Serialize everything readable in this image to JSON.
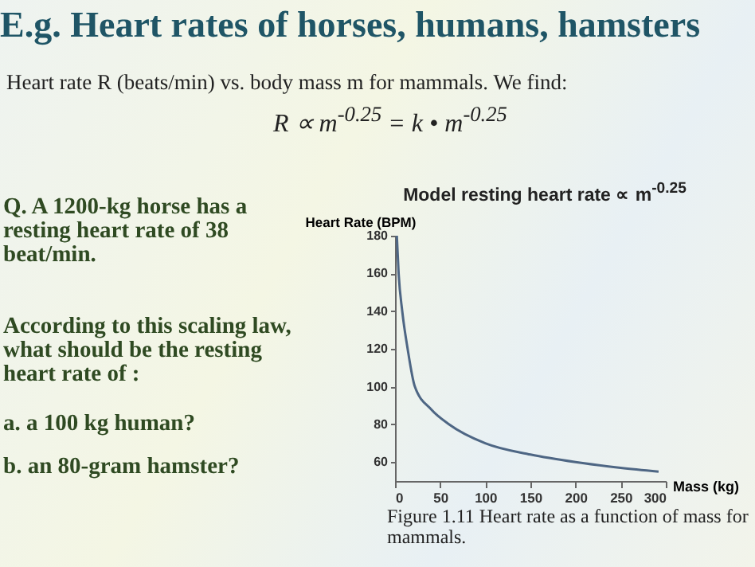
{
  "chart_data": {
    "type": "line",
    "title": "Model resting heart rate ∝ m$^{-0.25}$",
    "xlabel": "Mass (kg)",
    "ylabel": "Heart Rate (BPM)",
    "x": [
      2,
      4,
      8,
      14,
      22,
      40,
      60,
      100,
      150,
      200,
      250,
      292
    ],
    "series": [
      {
        "color": "#4e6684",
        "values": [
          180,
          160,
          140,
          120,
          100,
          88,
          80,
          70,
          64,
          60,
          57,
          55
        ]
      }
    ],
    "xlim": [
      0,
      300
    ],
    "xticks": [
      0,
      50,
      100,
      150,
      200,
      250,
      300
    ],
    "ylim": [
      50,
      180
    ],
    "yticks": [
      60,
      80,
      100,
      120,
      140,
      160,
      180
    ],
    "grid": false,
    "marker": "none",
    "line_style": "solid",
    "annotations": [
      "E.g. Heart rates of horses, humans, hamsters",
      "Heart rate R (beats/min) vs. body mass m for mammals. We find:",
      "R ∝ m$^{-0.25}$ = k • m$^{-0.25}$",
      "Q. A 1200-kg horse has a resting heart rate of 38 beat/min.",
      "According to this scaling law, what should be the resting heart rate of :",
      "a. a 100 kg human?",
      "b. an 80-gram hamster?",
      "Figure 1.11 Heart rate as a function of mass for mammals."
    ]
  }
}
